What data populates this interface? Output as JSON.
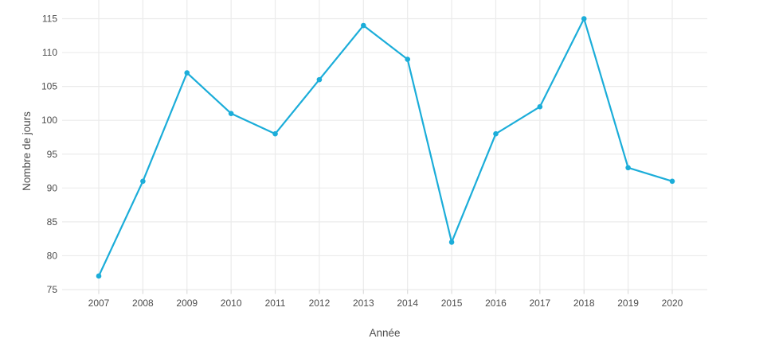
{
  "chart_data": {
    "type": "line",
    "title": "",
    "xlabel": "Année",
    "ylabel": "Nombre de jours",
    "categories": [
      "2007",
      "2008",
      "2009",
      "2010",
      "2011",
      "2012",
      "2013",
      "2014",
      "2015",
      "2016",
      "2017",
      "2018",
      "2019",
      "2020"
    ],
    "series": [
      {
        "name": "Nombre de jours",
        "values": [
          77,
          91,
          107,
          101,
          98,
          106,
          114,
          109,
          82,
          98,
          102,
          115,
          93,
          91
        ]
      }
    ],
    "yticks": [
      75,
      80,
      85,
      90,
      95,
      100,
      105,
      110,
      115
    ],
    "ylim": [
      75,
      117.6
    ],
    "grid": true,
    "legend_position": "none",
    "colors": {
      "line": "#1badd9",
      "marker": "#1badd9",
      "grid": "#ebebeb",
      "tick_mark": "#dcdcdc",
      "tick_text": "#4d4d4d",
      "axis_title_text": "#4d4d4d",
      "background": "#ffffff"
    }
  }
}
